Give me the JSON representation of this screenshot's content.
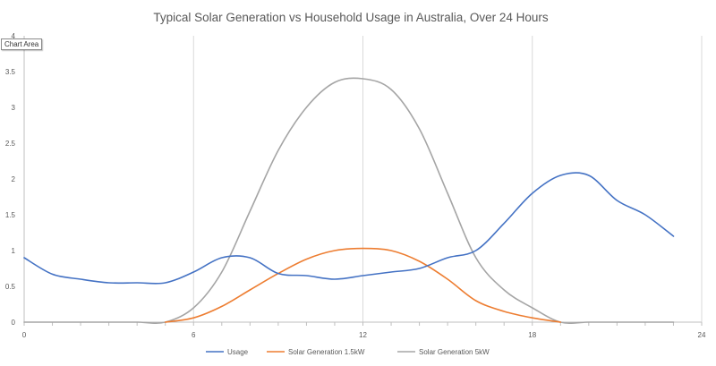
{
  "chart_data": {
    "type": "line",
    "title": "Typical Solar Generation vs Household Usage in Australia, Over 24 Hours",
    "xlim": [
      0,
      24
    ],
    "ylim": [
      0,
      4
    ],
    "x_ticks": [
      0,
      6,
      12,
      18,
      24
    ],
    "y_ticks": [
      0,
      0.5,
      1,
      1.5,
      2,
      2.5,
      3,
      3.5,
      4
    ],
    "grid": "vertical",
    "legend_position": "bottom",
    "series": [
      {
        "name": "Usage",
        "color": "#4472c4",
        "x": [
          0,
          1,
          2,
          3,
          4,
          5,
          6,
          7,
          8,
          9,
          10,
          11,
          12,
          13,
          14,
          15,
          16,
          17,
          18,
          19,
          20,
          21,
          22,
          23
        ],
        "values": [
          0.9,
          0.67,
          0.6,
          0.55,
          0.55,
          0.55,
          0.7,
          0.9,
          0.9,
          0.68,
          0.65,
          0.6,
          0.65,
          0.7,
          0.75,
          0.9,
          1.0,
          1.38,
          1.8,
          2.05,
          2.05,
          1.7,
          1.5,
          1.2
        ]
      },
      {
        "name": "Solar Generation 1.5kW",
        "color": "#ed7d31",
        "x": [
          5,
          6,
          7,
          8,
          9,
          10,
          11,
          12,
          13,
          14,
          15,
          16,
          17,
          18,
          19
        ],
        "values": [
          0,
          0.06,
          0.22,
          0.45,
          0.68,
          0.88,
          1.0,
          1.03,
          1.0,
          0.85,
          0.6,
          0.3,
          0.15,
          0.06,
          0
        ]
      },
      {
        "name": "Solar Generation 5kW",
        "color": "#a5a5a5",
        "x": [
          0,
          1,
          2,
          3,
          4,
          5,
          6,
          7,
          8,
          9,
          10,
          11,
          12,
          13,
          14,
          15,
          16,
          17,
          18,
          19,
          20,
          21,
          22,
          23
        ],
        "values": [
          0,
          0,
          0,
          0,
          0,
          0,
          0.2,
          0.7,
          1.55,
          2.4,
          3.0,
          3.35,
          3.4,
          3.25,
          2.7,
          1.8,
          0.9,
          0.45,
          0.2,
          0,
          0,
          0,
          0,
          0
        ]
      }
    ]
  },
  "ui": {
    "tooltip": "Chart Area"
  }
}
